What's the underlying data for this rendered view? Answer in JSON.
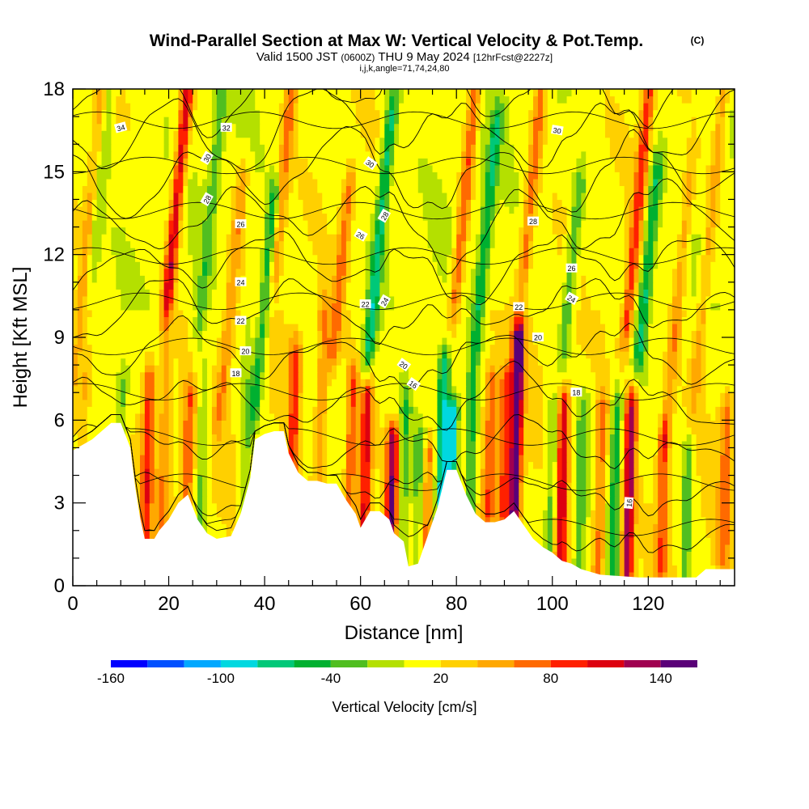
{
  "chart_data": {
    "type": "heatmap",
    "title": "Wind-Parallel Section at Max W: Vertical Velocity & Pot.Temp.",
    "title_mark": "(C)",
    "subtitle_pre": "Valid 1500 JST",
    "subtitle_z": "(0600Z)",
    "subtitle_post": "THU 9 May 2024",
    "subtitle_fcst": "[12hrFcst@2227z]",
    "subtitle2": "i,j,k,angle=71,74,24,80",
    "xlabel": "Distance [nm]",
    "ylabel": "Height [Kft MSL]",
    "xlim": [
      0,
      138
    ],
    "ylim": [
      0,
      18
    ],
    "x_ticks": [
      {
        "v": 0,
        "t": "0"
      },
      {
        "v": 20,
        "t": "20"
      },
      {
        "v": 40,
        "t": "40"
      },
      {
        "v": 60,
        "t": "60"
      },
      {
        "v": 80,
        "t": "80"
      },
      {
        "v": 100,
        "t": "100"
      },
      {
        "v": 120,
        "t": "120"
      }
    ],
    "y_ticks": [
      {
        "v": 0,
        "t": "0"
      },
      {
        "v": 3,
        "t": "3"
      },
      {
        "v": 6,
        "t": "6"
      },
      {
        "v": 9,
        "t": "9"
      },
      {
        "v": 12,
        "t": "12"
      },
      {
        "v": 15,
        "t": "15"
      },
      {
        "v": 18,
        "t": "18"
      }
    ],
    "colorbar": {
      "title": "Vertical Velocity [cm/s]",
      "min": -160,
      "max": 160,
      "step": 20,
      "colors": [
        "#0000ff",
        "#0050ff",
        "#00a8ff",
        "#00d8e0",
        "#00c878",
        "#00b030",
        "#50be20",
        "#b4e000",
        "#ffff00",
        "#ffd000",
        "#ffa800",
        "#ff6a00",
        "#ff2000",
        "#dd0010",
        "#a00050",
        "#5a0078"
      ],
      "labels": [
        {
          "v": -160,
          "t": "-160"
        },
        {
          "v": -100,
          "t": "-100"
        },
        {
          "v": -40,
          "t": "-40"
        },
        {
          "v": 20,
          "t": "20"
        },
        {
          "v": 80,
          "t": "80"
        },
        {
          "v": 140,
          "t": "140"
        }
      ]
    },
    "terrain_kft": [
      [
        0,
        4.9
      ],
      [
        2,
        5.1
      ],
      [
        4,
        5.3
      ],
      [
        6,
        5.6
      ],
      [
        8,
        5.9
      ],
      [
        10,
        5.9
      ],
      [
        12,
        5.0
      ],
      [
        13,
        3.6
      ],
      [
        14,
        2.5
      ],
      [
        15,
        1.7
      ],
      [
        17,
        1.7
      ],
      [
        18,
        2.0
      ],
      [
        20,
        2.4
      ],
      [
        22,
        3.0
      ],
      [
        24,
        3.3
      ],
      [
        26,
        2.4
      ],
      [
        28,
        1.9
      ],
      [
        30,
        1.7
      ],
      [
        33,
        1.8
      ],
      [
        35,
        2.6
      ],
      [
        37,
        3.9
      ],
      [
        38,
        5.3
      ],
      [
        40,
        5.5
      ],
      [
        42,
        5.6
      ],
      [
        44,
        5.6
      ],
      [
        45,
        4.8
      ],
      [
        47,
        4.1
      ],
      [
        49,
        3.8
      ],
      [
        51,
        3.8
      ],
      [
        53,
        3.7
      ],
      [
        55,
        3.7
      ],
      [
        57,
        3.1
      ],
      [
        59,
        2.6
      ],
      [
        60,
        2.1
      ],
      [
        62,
        2.7
      ],
      [
        64,
        2.7
      ],
      [
        66,
        2.4
      ],
      [
        67,
        1.9
      ],
      [
        69,
        1.6
      ],
      [
        70,
        0.7
      ],
      [
        72,
        0.8
      ],
      [
        74,
        1.8
      ],
      [
        76,
        2.8
      ],
      [
        78,
        4.2
      ],
      [
        80,
        4.2
      ],
      [
        82,
        3.3
      ],
      [
        84,
        2.6
      ],
      [
        86,
        2.3
      ],
      [
        88,
        2.3
      ],
      [
        90,
        2.4
      ],
      [
        92,
        2.7
      ],
      [
        94,
        2.2
      ],
      [
        96,
        1.7
      ],
      [
        98,
        1.4
      ],
      [
        100,
        1.2
      ],
      [
        102,
        0.9
      ],
      [
        104,
        0.8
      ],
      [
        106,
        0.6
      ],
      [
        110,
        0.4
      ],
      [
        118,
        0.3
      ],
      [
        130,
        0.3
      ],
      [
        132,
        0.6
      ],
      [
        138,
        0.6
      ]
    ],
    "columns": [
      {
        "x": 2,
        "w": 38,
        "z": [
          0.2,
          7.0
        ]
      },
      {
        "x": 3,
        "w": 38,
        "z": [
          7.0,
          18.0
        ]
      },
      {
        "x": 6,
        "w": -30,
        "z": [
          12.0,
          18.0
        ]
      },
      {
        "x": 10,
        "w": -40,
        "z": [
          2.0,
          7.0
        ]
      },
      {
        "x": 15.5,
        "w": 75,
        "z": [
          1.5,
          7.0
        ]
      },
      {
        "x": 19,
        "w": 42,
        "z": [
          2.0,
          8.0
        ]
      },
      {
        "x": 22,
        "w": 110,
        "z": [
          11.0,
          18.0
        ]
      },
      {
        "x": 24,
        "w": 60,
        "z": [
          2.5,
          6.5
        ]
      },
      {
        "x": 27,
        "w": -45,
        "z": [
          1.8,
          7.0
        ]
      },
      {
        "x": 29,
        "w": -40,
        "z": [
          10.0,
          18.0
        ]
      },
      {
        "x": 33,
        "w": 45,
        "z": [
          7.0,
          14.0
        ]
      },
      {
        "x": 36,
        "w": -30,
        "z": [
          2.0,
          9.0
        ]
      },
      {
        "x": 40,
        "w": -70,
        "z": [
          7.0,
          13.5
        ]
      },
      {
        "x": 44,
        "w": 60,
        "z": [
          12.0,
          18.0
        ]
      },
      {
        "x": 46,
        "w": 70,
        "z": [
          3.5,
          8.0
        ]
      },
      {
        "x": 52,
        "w": 45,
        "z": [
          4.0,
          9.5
        ]
      },
      {
        "x": 56,
        "w": 60,
        "z": [
          9.0,
          14.0
        ]
      },
      {
        "x": 58,
        "w": 70,
        "z": [
          2.5,
          7.0
        ]
      },
      {
        "x": 61,
        "w": 100,
        "z": [
          2.0,
          6.5
        ]
      },
      {
        "x": 64,
        "w": -80,
        "z": [
          9.0,
          16.5
        ]
      },
      {
        "x": 66.5,
        "w": 120,
        "z": [
          1.5,
          5.0
        ]
      },
      {
        "x": 69,
        "w": -50,
        "z": [
          0.8,
          6.0
        ]
      },
      {
        "x": 72,
        "w": -45,
        "z": [
          1.0,
          5.0
        ]
      },
      {
        "x": 74,
        "w": 55,
        "z": [
          1.0,
          4.5
        ]
      },
      {
        "x": 77,
        "w": -100,
        "z": [
          2.5,
          7.5
        ]
      },
      {
        "x": 79,
        "w": -120,
        "z": [
          2.5,
          6.0
        ]
      },
      {
        "x": 82,
        "w": 70,
        "z": [
          11.0,
          18.0
        ]
      },
      {
        "x": 83,
        "w": -70,
        "z": [
          2.5,
          6.5
        ]
      },
      {
        "x": 86,
        "w": -70,
        "z": [
          9.0,
          16.0
        ]
      },
      {
        "x": 87,
        "w": 60,
        "z": [
          3.0,
          7.0
        ]
      },
      {
        "x": 90,
        "w": 70,
        "z": [
          3.0,
          7.0
        ]
      },
      {
        "x": 92.5,
        "w": 150,
        "z": [
          3.0,
          8.5
        ]
      },
      {
        "x": 96,
        "w": 60,
        "z": [
          12.0,
          18.0
        ]
      },
      {
        "x": 100,
        "w": -45,
        "z": [
          2.0,
          6.0
        ]
      },
      {
        "x": 102,
        "w": 110,
        "z": [
          1.0,
          6.0
        ]
      },
      {
        "x": 104,
        "w": -50,
        "z": [
          9.0,
          14.0
        ]
      },
      {
        "x": 106,
        "w": -40,
        "z": [
          1.0,
          6.0
        ]
      },
      {
        "x": 110,
        "w": 60,
        "z": [
          1.0,
          6.0
        ]
      },
      {
        "x": 113,
        "w": -60,
        "z": [
          0.5,
          6.0
        ]
      },
      {
        "x": 116,
        "w": 120,
        "z": [
          0.8,
          6.0
        ]
      },
      {
        "x": 118,
        "w": 80,
        "z": [
          10.0,
          18.0
        ]
      },
      {
        "x": 120,
        "w": -70,
        "z": [
          9.0,
          14.5
        ]
      },
      {
        "x": 123,
        "w": 60,
        "z": [
          1.0,
          5.0
        ]
      },
      {
        "x": 126,
        "w": 45,
        "z": [
          6.0,
          14.0
        ]
      },
      {
        "x": 128,
        "w": -45,
        "z": [
          0.5,
          4.5
        ]
      },
      {
        "x": 133,
        "w": 40,
        "z": [
          8.0,
          18.0
        ]
      },
      {
        "x": 136,
        "w": 50,
        "z": [
          1.5,
          6.0
        ]
      }
    ],
    "theta_levels": [
      14,
      16,
      18,
      20,
      22,
      24,
      26,
      28,
      30,
      32,
      34
    ],
    "theta_labels": [
      {
        "t": "34",
        "x": 10,
        "y": 16.6,
        "rot": -15
      },
      {
        "t": "32",
        "x": 32,
        "y": 16.6,
        "rot": 0
      },
      {
        "t": "30",
        "x": 28,
        "y": 15.5,
        "rot": -60
      },
      {
        "t": "28",
        "x": 28,
        "y": 14.0,
        "rot": -60
      },
      {
        "t": "26",
        "x": 35,
        "y": 13.1,
        "rot": 0
      },
      {
        "t": "24",
        "x": 35,
        "y": 11.0,
        "rot": 0
      },
      {
        "t": "22",
        "x": 35,
        "y": 9.6,
        "rot": 0
      },
      {
        "t": "20",
        "x": 36,
        "y": 8.5,
        "rot": 0
      },
      {
        "t": "18",
        "x": 34,
        "y": 7.7,
        "rot": 0
      },
      {
        "t": "30",
        "x": 62,
        "y": 15.3,
        "rot": 35
      },
      {
        "t": "28",
        "x": 65,
        "y": 13.4,
        "rot": -60
      },
      {
        "t": "26",
        "x": 60,
        "y": 12.7,
        "rot": 30
      },
      {
        "t": "24",
        "x": 65,
        "y": 10.3,
        "rot": -60
      },
      {
        "t": "22",
        "x": 61,
        "y": 10.2,
        "rot": 0
      },
      {
        "t": "20",
        "x": 69,
        "y": 8.0,
        "rot": 35
      },
      {
        "t": "16",
        "x": 71,
        "y": 7.3,
        "rot": 35
      },
      {
        "t": "30",
        "x": 101,
        "y": 16.5,
        "rot": 10
      },
      {
        "t": "28",
        "x": 96,
        "y": 13.2,
        "rot": 0
      },
      {
        "t": "26",
        "x": 104,
        "y": 11.5,
        "rot": 0
      },
      {
        "t": "24",
        "x": 104,
        "y": 10.4,
        "rot": 30
      },
      {
        "t": "22",
        "x": 93,
        "y": 10.1,
        "rot": 0
      },
      {
        "t": "20",
        "x": 97,
        "y": 9.0,
        "rot": 0
      },
      {
        "t": "18",
        "x": 105,
        "y": 7.0,
        "rot": 0
      },
      {
        "t": "16",
        "x": 116,
        "y": 3.0,
        "rot": -85
      }
    ]
  }
}
